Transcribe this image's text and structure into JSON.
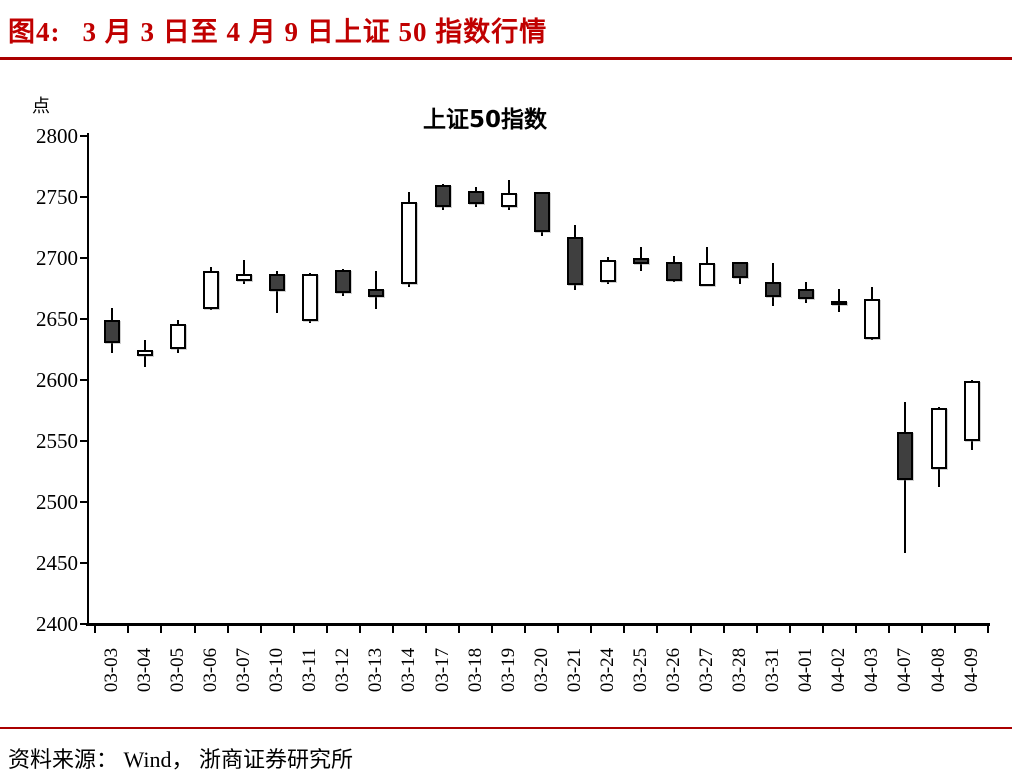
{
  "header": {
    "figure_label": "图4:",
    "title": "3 月 3 日至 4 月 9 日上证 50 指数行情"
  },
  "footer": {
    "source": "资料来源： Wind， 浙商证券研究所"
  },
  "accent": {
    "title_color": "#C00000",
    "rule_color": "#AA0000"
  },
  "chart_data": {
    "type": "candlestick",
    "title": "上证50指数",
    "y_axis": {
      "unit": "点",
      "min": 2400,
      "max": 2800,
      "tick_step": 50,
      "ticks": [
        2800,
        2750,
        2700,
        2650,
        2600,
        2550,
        2500,
        2450,
        2400
      ]
    },
    "grid": "off",
    "colors": {
      "up_fill": "#FFFFFF",
      "down_fill": "#3F3F3F",
      "outline": "#000000"
    },
    "ohlc": [
      {
        "date": "03-03",
        "open": 2649,
        "high": 2659,
        "low": 2622,
        "close": 2630
      },
      {
        "date": "03-04",
        "open": 2620,
        "high": 2633,
        "low": 2611,
        "close": 2625
      },
      {
        "date": "03-05",
        "open": 2625,
        "high": 2649,
        "low": 2622,
        "close": 2646
      },
      {
        "date": "03-06",
        "open": 2658,
        "high": 2693,
        "low": 2657,
        "close": 2689
      },
      {
        "date": "03-07",
        "open": 2681,
        "high": 2698,
        "low": 2679,
        "close": 2687
      },
      {
        "date": "03-10",
        "open": 2687,
        "high": 2689,
        "low": 2655,
        "close": 2673
      },
      {
        "date": "03-11",
        "open": 2648,
        "high": 2688,
        "low": 2647,
        "close": 2687
      },
      {
        "date": "03-12",
        "open": 2690,
        "high": 2691,
        "low": 2669,
        "close": 2671
      },
      {
        "date": "03-13",
        "open": 2675,
        "high": 2689,
        "low": 2658,
        "close": 2668
      },
      {
        "date": "03-14",
        "open": 2679,
        "high": 2754,
        "low": 2676,
        "close": 2746
      },
      {
        "date": "03-17",
        "open": 2760,
        "high": 2761,
        "low": 2739,
        "close": 2742
      },
      {
        "date": "03-18",
        "open": 2755,
        "high": 2758,
        "low": 2742,
        "close": 2744
      },
      {
        "date": "03-19",
        "open": 2742,
        "high": 2764,
        "low": 2739,
        "close": 2753
      },
      {
        "date": "03-20",
        "open": 2754,
        "high": 2754,
        "low": 2718,
        "close": 2721
      },
      {
        "date": "03-21",
        "open": 2717,
        "high": 2727,
        "low": 2674,
        "close": 2678
      },
      {
        "date": "03-24",
        "open": 2680,
        "high": 2701,
        "low": 2679,
        "close": 2698
      },
      {
        "date": "03-25",
        "open": 2700,
        "high": 2709,
        "low": 2689,
        "close": 2695
      },
      {
        "date": "03-26",
        "open": 2697,
        "high": 2702,
        "low": 2680,
        "close": 2681
      },
      {
        "date": "03-27",
        "open": 2677,
        "high": 2709,
        "low": 2677,
        "close": 2696
      },
      {
        "date": "03-28",
        "open": 2697,
        "high": 2697,
        "low": 2679,
        "close": 2684
      },
      {
        "date": "03-31",
        "open": 2680,
        "high": 2696,
        "low": 2661,
        "close": 2668
      },
      {
        "date": "04-01",
        "open": 2675,
        "high": 2680,
        "low": 2663,
        "close": 2666
      },
      {
        "date": "04-02",
        "open": 2665,
        "high": 2675,
        "low": 2656,
        "close": 2664
      },
      {
        "date": "04-03",
        "open": 2634,
        "high": 2676,
        "low": 2633,
        "close": 2666
      },
      {
        "date": "04-07",
        "open": 2557,
        "high": 2582,
        "low": 2458,
        "close": 2518
      },
      {
        "date": "04-08",
        "open": 2527,
        "high": 2578,
        "low": 2512,
        "close": 2577
      },
      {
        "date": "04-09",
        "open": 2550,
        "high": 2600,
        "low": 2543,
        "close": 2599
      }
    ]
  }
}
